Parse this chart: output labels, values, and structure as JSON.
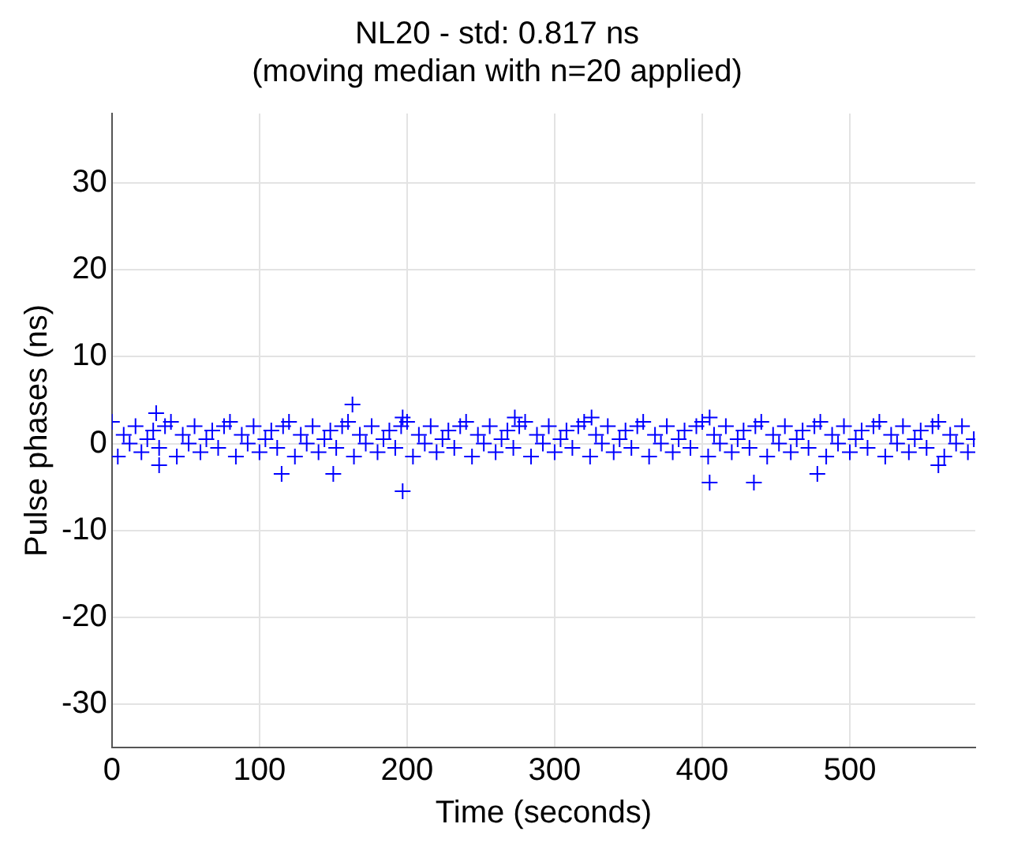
{
  "chart_data": {
    "type": "scatter",
    "title": "NL20 - std: 0.817 ns",
    "subtitle": "(moving median with n=20 applied)",
    "xlabel": "Time (seconds)",
    "ylabel": "Pulse phases (ns)",
    "xlim": [
      0,
      585
    ],
    "xticks": [
      0,
      100,
      200,
      300,
      400,
      500
    ],
    "ylim": [
      -35,
      38
    ],
    "yticks": [
      -30,
      -20,
      -10,
      0,
      10,
      20,
      30
    ],
    "grid": true,
    "marker": "cross",
    "series": [
      {
        "color": "#0000ff",
        "x": [
          0,
          4,
          8,
          12,
          16,
          20,
          24,
          28,
          32,
          36,
          40,
          44,
          48,
          52,
          56,
          60,
          64,
          68,
          72,
          76,
          80,
          84,
          88,
          92,
          96,
          100,
          104,
          108,
          112,
          116,
          120,
          124,
          128,
          132,
          136,
          140,
          144,
          148,
          152,
          156,
          160,
          164,
          168,
          172,
          176,
          180,
          184,
          188,
          192,
          196,
          200,
          204,
          208,
          212,
          216,
          220,
          224,
          228,
          232,
          236,
          240,
          244,
          248,
          252,
          256,
          260,
          264,
          268,
          272,
          276,
          280,
          284,
          288,
          292,
          296,
          300,
          304,
          308,
          312,
          316,
          320,
          324,
          328,
          332,
          336,
          340,
          344,
          348,
          352,
          356,
          360,
          364,
          368,
          372,
          376,
          380,
          384,
          388,
          392,
          396,
          400,
          404,
          408,
          412,
          416,
          420,
          424,
          428,
          432,
          436,
          440,
          444,
          448,
          452,
          456,
          460,
          464,
          468,
          472,
          476,
          480,
          484,
          488,
          492,
          496,
          500,
          504,
          508,
          512,
          516,
          520,
          524,
          528,
          532,
          536,
          540,
          544,
          548,
          552,
          556,
          560,
          564,
          568,
          572,
          576,
          580,
          584,
          30,
          32,
          115,
          150,
          163,
          197,
          197,
          273,
          325,
          405,
          405,
          435,
          478,
          560
        ],
        "values": [
          2.5,
          -1.5,
          1,
          0,
          2,
          -1,
          0.5,
          1.5,
          -0.5,
          2,
          2.5,
          -1.5,
          1,
          0,
          2,
          -1,
          0.5,
          1.5,
          -0.5,
          2,
          2.5,
          -1.5,
          1,
          0,
          2,
          -1,
          0.5,
          1.5,
          -0.5,
          2,
          2.5,
          -1.5,
          1,
          0,
          2,
          -1,
          0.5,
          1.5,
          -0.5,
          2,
          2.5,
          -1.5,
          1,
          0,
          2,
          -1,
          0.5,
          1.5,
          -0.5,
          2,
          2.5,
          -1.5,
          1,
          0,
          2,
          -1,
          0.5,
          1.5,
          -0.5,
          2,
          2.5,
          -1.5,
          1,
          0,
          2,
          -1,
          0.5,
          1.5,
          -0.5,
          2,
          2.5,
          -1.5,
          1,
          0,
          2,
          -1,
          0.5,
          1.5,
          -0.5,
          2,
          2.5,
          -1.5,
          1,
          0,
          2,
          -1,
          0.5,
          1.5,
          -0.5,
          2,
          2.5,
          -1.5,
          1,
          0,
          2,
          -1,
          0.5,
          1.5,
          -0.5,
          2,
          2.5,
          -1.5,
          1,
          0,
          2,
          -1,
          0.5,
          1.5,
          -0.5,
          2,
          2.5,
          -1.5,
          1,
          0,
          2,
          -1,
          0.5,
          1.5,
          -0.5,
          2,
          2.5,
          -1.5,
          1,
          0,
          2,
          -1,
          0.5,
          1.5,
          -0.5,
          2,
          2.5,
          -1.5,
          1,
          0,
          2,
          -1,
          0.5,
          1.5,
          -0.5,
          2,
          2.5,
          -1.5,
          1,
          0,
          2,
          -1,
          0.5,
          3.5,
          -2.5,
          -3.5,
          -3.5,
          4.5,
          -5.5,
          3,
          3,
          3,
          -4.5,
          3,
          -4.5,
          -3.5,
          -2.5
        ]
      }
    ]
  }
}
